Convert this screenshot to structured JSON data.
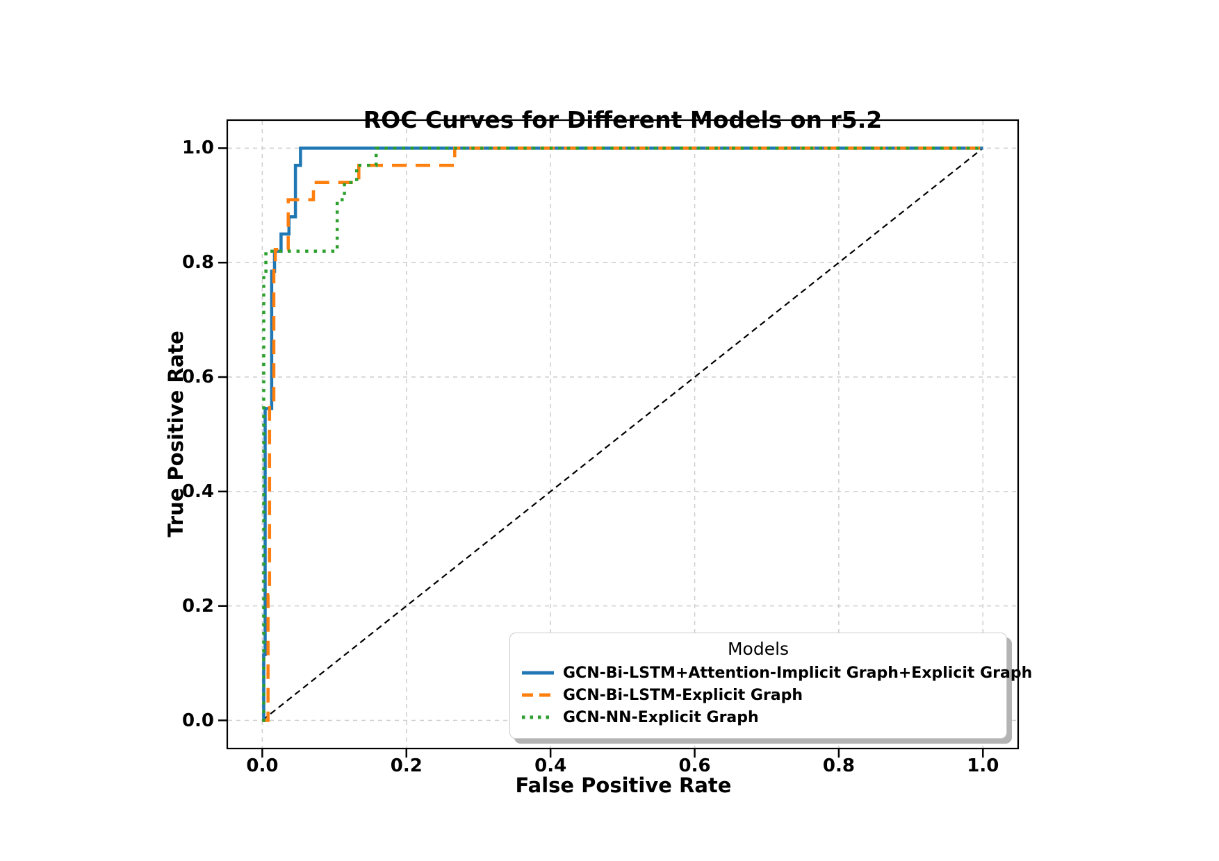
{
  "title": "ROC Curves for Different Models on r5.2",
  "axes": {
    "xlabel": "False Positive Rate",
    "ylabel": "True Positive Rate",
    "x_tick_labels": [
      "0.0",
      "0.2",
      "0.4",
      "0.6",
      "0.8",
      "1.0"
    ],
    "y_tick_labels": [
      "0.0",
      "0.2",
      "0.4",
      "0.6",
      "0.8",
      "1.0"
    ]
  },
  "legend": {
    "title": "Models"
  },
  "chart_data": {
    "type": "line",
    "title": "ROC Curves for Different Models on r5.2",
    "xlabel": "False Positive Rate",
    "ylabel": "True Positive Rate",
    "xlim": [
      -0.05,
      1.05
    ],
    "ylim": [
      -0.05,
      1.05
    ],
    "x_ticks": [
      0,
      0.2,
      0.4,
      0.6,
      0.8,
      1.0
    ],
    "y_ticks": [
      0,
      0.2,
      0.4,
      0.6,
      0.8,
      1.0
    ],
    "grid": true,
    "grid_style": "dashed",
    "legend_position": "lower right",
    "series": [
      {
        "name": "GCN-Bi-LSTM+Attention-Implicit Graph+Explicit Graph",
        "color": "#1f77b4",
        "style": "solid",
        "in_legend": true,
        "points": [
          [
            0,
            0
          ],
          [
            0.002,
            0
          ],
          [
            0.002,
            0.115
          ],
          [
            0.004,
            0.115
          ],
          [
            0.004,
            0.545
          ],
          [
            0.013,
            0.545
          ],
          [
            0.013,
            0.785
          ],
          [
            0.017,
            0.785
          ],
          [
            0.017,
            0.82
          ],
          [
            0.026,
            0.82
          ],
          [
            0.026,
            0.85
          ],
          [
            0.037,
            0.85
          ],
          [
            0.037,
            0.88
          ],
          [
            0.046,
            0.88
          ],
          [
            0.046,
            0.97
          ],
          [
            0.053,
            0.97
          ],
          [
            0.053,
            1
          ],
          [
            1,
            1
          ]
        ]
      },
      {
        "name": "GCN-Bi-LSTM-Explicit Graph",
        "color": "#ff7f0e",
        "style": "dashed",
        "in_legend": true,
        "points": [
          [
            0,
            0
          ],
          [
            0.008,
            0
          ],
          [
            0.008,
            0.22
          ],
          [
            0.01,
            0.22
          ],
          [
            0.01,
            0.55
          ],
          [
            0.016,
            0.55
          ],
          [
            0.016,
            0.79
          ],
          [
            0.018,
            0.79
          ],
          [
            0.018,
            0.823
          ],
          [
            0.036,
            0.823
          ],
          [
            0.036,
            0.91
          ],
          [
            0.071,
            0.91
          ],
          [
            0.071,
            0.94
          ],
          [
            0.134,
            0.94
          ],
          [
            0.134,
            0.97
          ],
          [
            0.267,
            0.97
          ],
          [
            0.267,
            1
          ],
          [
            1,
            1
          ]
        ]
      },
      {
        "name": "GCN-NN-Explicit Graph",
        "color": "#2ca02c",
        "style": "dotted",
        "in_legend": true,
        "points": [
          [
            0,
            0
          ],
          [
            0.002,
            0
          ],
          [
            0.002,
            0.785
          ],
          [
            0.005,
            0.785
          ],
          [
            0.005,
            0.82
          ],
          [
            0.104,
            0.82
          ],
          [
            0.104,
            0.91
          ],
          [
            0.114,
            0.91
          ],
          [
            0.114,
            0.94
          ],
          [
            0.131,
            0.94
          ],
          [
            0.131,
            0.97
          ],
          [
            0.158,
            0.97
          ],
          [
            0.158,
            1
          ],
          [
            1,
            1
          ]
        ]
      },
      {
        "name": "chance-diagonal",
        "color": "#000000",
        "style": "dashed_thin",
        "in_legend": false,
        "points": [
          [
            0,
            0
          ],
          [
            1,
            1
          ]
        ]
      }
    ]
  }
}
